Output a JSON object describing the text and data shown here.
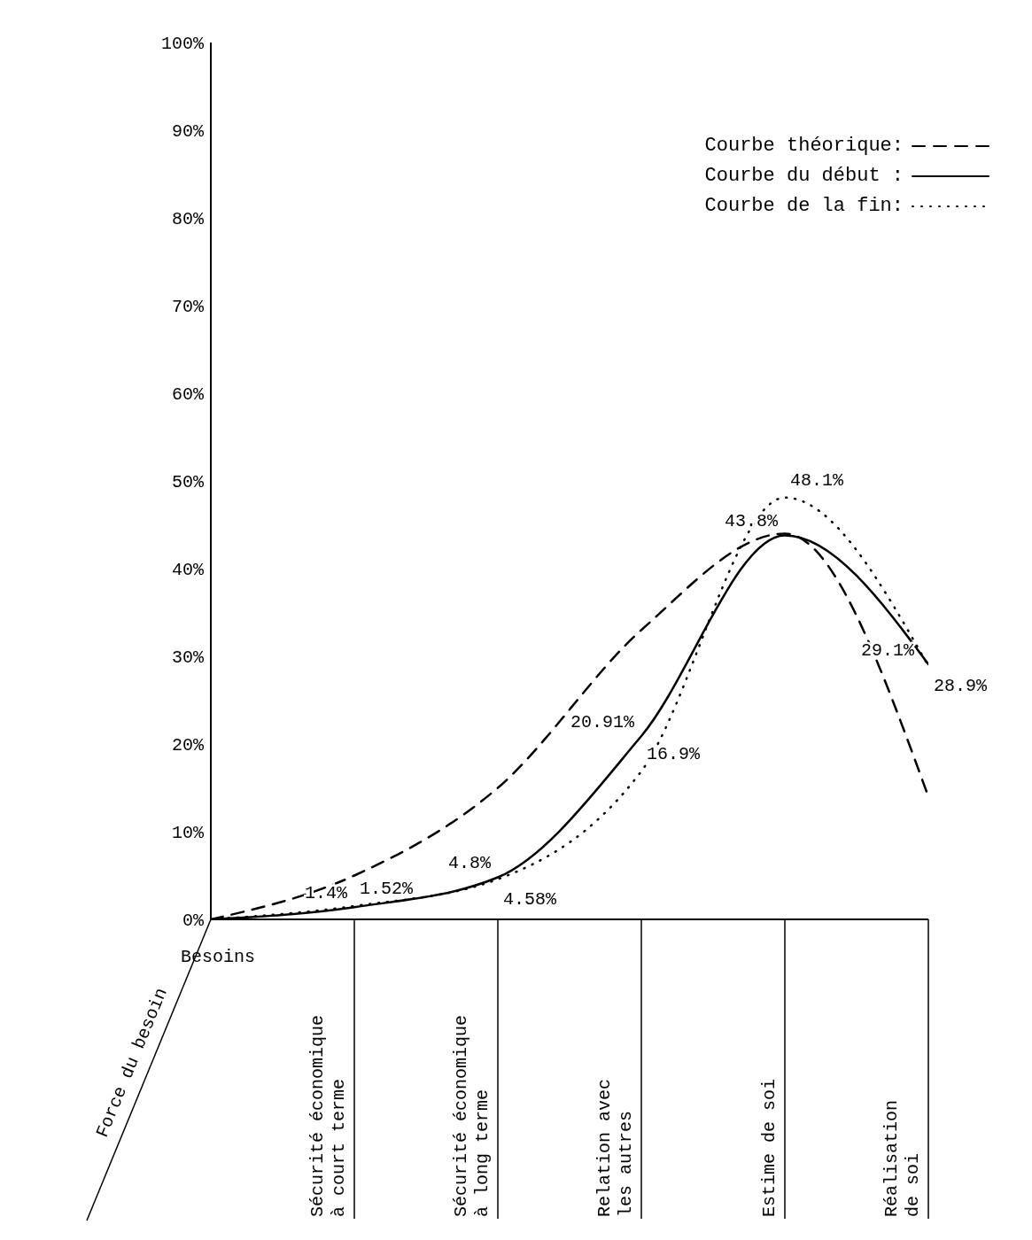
{
  "chart_data": {
    "type": "line",
    "xlabel": "Besoins",
    "ylabel": "Force du besoin",
    "categories": [
      null,
      "Sécurité économique\nà court terme",
      "Sécurité économique\nà long terme",
      "Relation avec\nles autres",
      "Estime de soi",
      "Réalisation\nde soi"
    ],
    "series": [
      {
        "name": "Courbe théorique:",
        "color": "#000000",
        "line_style": "dashed",
        "values": [
          0,
          5,
          15,
          33,
          44,
          14
        ]
      },
      {
        "name": "Courbe du début :",
        "color": "#000000",
        "line_style": "solid",
        "values": [
          0,
          1.4,
          4.8,
          20.91,
          43.8,
          29.1
        ],
        "value_labels": [
          null,
          "1.4%",
          "4.8%",
          "20.91%",
          "43.8%",
          "29.1%"
        ]
      },
      {
        "name": "Courbe de la fin:",
        "color": "#000000",
        "line_style": "dotted",
        "values": [
          0,
          1.52,
          4.58,
          16.9,
          48.1,
          28.9
        ],
        "value_labels": [
          null,
          "1.52%",
          "4.58%",
          "16.9%",
          "48.1%",
          "28.9%"
        ]
      }
    ],
    "ylim": [
      0,
      100
    ],
    "yticks": [
      {
        "value": 0,
        "label": "0%"
      },
      {
        "value": 10,
        "label": "10%"
      },
      {
        "value": 20,
        "label": "20%"
      },
      {
        "value": 30,
        "label": "30%"
      },
      {
        "value": 40,
        "label": "40%"
      },
      {
        "value": 50,
        "label": "50%"
      },
      {
        "value": 60,
        "label": "60%"
      },
      {
        "value": 70,
        "label": "70%"
      },
      {
        "value": 80,
        "label": "80%"
      },
      {
        "value": 90,
        "label": "90%"
      },
      {
        "value": 100,
        "label": "100%"
      }
    ],
    "grid": false,
    "legend": "top right",
    "marker": "none"
  }
}
